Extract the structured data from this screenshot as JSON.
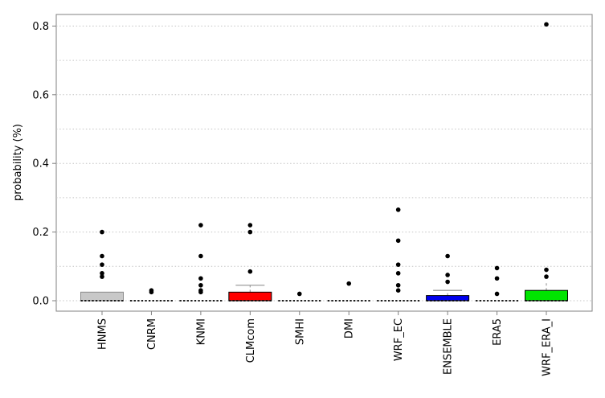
{
  "figure": {
    "background": "#ffffff",
    "axis_color": "#808080",
    "grid_color": "#c4c4c4",
    "text_color": "#000000"
  },
  "chart_data": {
    "type": "boxplot",
    "title": "",
    "xlabel": "",
    "ylabel": "probability (%)",
    "ylim": [
      -0.03,
      0.834
    ],
    "yticks": [
      0.0,
      0.2,
      0.4,
      0.6,
      0.8
    ],
    "ytick_labels": [
      "0.0",
      "0.2",
      "0.4",
      "0.6",
      "0.8"
    ],
    "grid": {
      "step": 0.1,
      "style": "dotted",
      "on": true
    },
    "legend": "none",
    "outlier_color": "#000000",
    "whisker_color": "#9e9e9e",
    "median_color": "#000000",
    "categories": [
      "HNMS",
      "CNRM",
      "KNMI",
      "CLMcom",
      "SMHI",
      "DMI",
      "WRF_EC",
      "ENSEMBLE",
      "ERA5",
      "WRF_ERA_I"
    ],
    "boxes": [
      {
        "label": "HNMS",
        "fill": "#c8c8c8",
        "edge": "#8a8a8a",
        "q1": 0,
        "median": 0,
        "q3": 0.025,
        "whisker_low": 0,
        "whisker_high": 0.025,
        "cap": false,
        "outliers": [
          0.2,
          0.13,
          0.105,
          0.08,
          0.07
        ]
      },
      {
        "label": "CNRM",
        "fill": null,
        "edge": null,
        "q1": 0,
        "median": 0,
        "q3": 0,
        "whisker_low": 0,
        "whisker_high": 0,
        "cap": false,
        "outliers": [
          0.03,
          0.025
        ]
      },
      {
        "label": "KNMI",
        "fill": null,
        "edge": null,
        "q1": 0,
        "median": 0,
        "q3": 0,
        "whisker_low": 0,
        "whisker_high": 0,
        "cap": false,
        "outliers": [
          0.22,
          0.13,
          0.065,
          0.045,
          0.03,
          0.025
        ]
      },
      {
        "label": "CLMcom",
        "fill": "#ff0000",
        "edge": "#000000",
        "q1": 0,
        "median": 0,
        "q3": 0.025,
        "whisker_low": 0,
        "whisker_high": 0.045,
        "cap": true,
        "outliers": [
          0.22,
          0.2,
          0.085
        ]
      },
      {
        "label": "SMHI",
        "fill": null,
        "edge": null,
        "q1": 0,
        "median": 0,
        "q3": 0,
        "whisker_low": 0,
        "whisker_high": 0,
        "cap": false,
        "outliers": [
          0.02
        ]
      },
      {
        "label": "DMI",
        "fill": null,
        "edge": null,
        "q1": 0,
        "median": 0,
        "q3": 0,
        "whisker_low": 0,
        "whisker_high": 0,
        "cap": false,
        "outliers": [
          0.05
        ]
      },
      {
        "label": "WRF_EC",
        "fill": null,
        "edge": null,
        "q1": 0,
        "median": 0,
        "q3": 0,
        "whisker_low": 0,
        "whisker_high": 0,
        "cap": false,
        "outliers": [
          0.265,
          0.175,
          0.105,
          0.08,
          0.045,
          0.03
        ]
      },
      {
        "label": "ENSEMBLE",
        "fill": "#0000ee",
        "edge": "#000000",
        "q1": 0,
        "median": 0,
        "q3": 0.015,
        "whisker_low": 0,
        "whisker_high": 0.03,
        "cap": true,
        "outliers": [
          0.13,
          0.075,
          0.055
        ]
      },
      {
        "label": "ERA5",
        "fill": null,
        "edge": null,
        "q1": 0,
        "median": 0,
        "q3": 0,
        "whisker_low": 0,
        "whisker_high": 0,
        "cap": false,
        "outliers": [
          0.095,
          0.065,
          0.02
        ]
      },
      {
        "label": "WRF_ERA_I",
        "fill": "#00e400",
        "edge": "#000000",
        "q1": 0,
        "median": 0,
        "q3": 0.03,
        "whisker_low": 0,
        "whisker_high": 0.055,
        "cap": false,
        "outliers": [
          0.805,
          0.09,
          0.07
        ]
      }
    ]
  }
}
